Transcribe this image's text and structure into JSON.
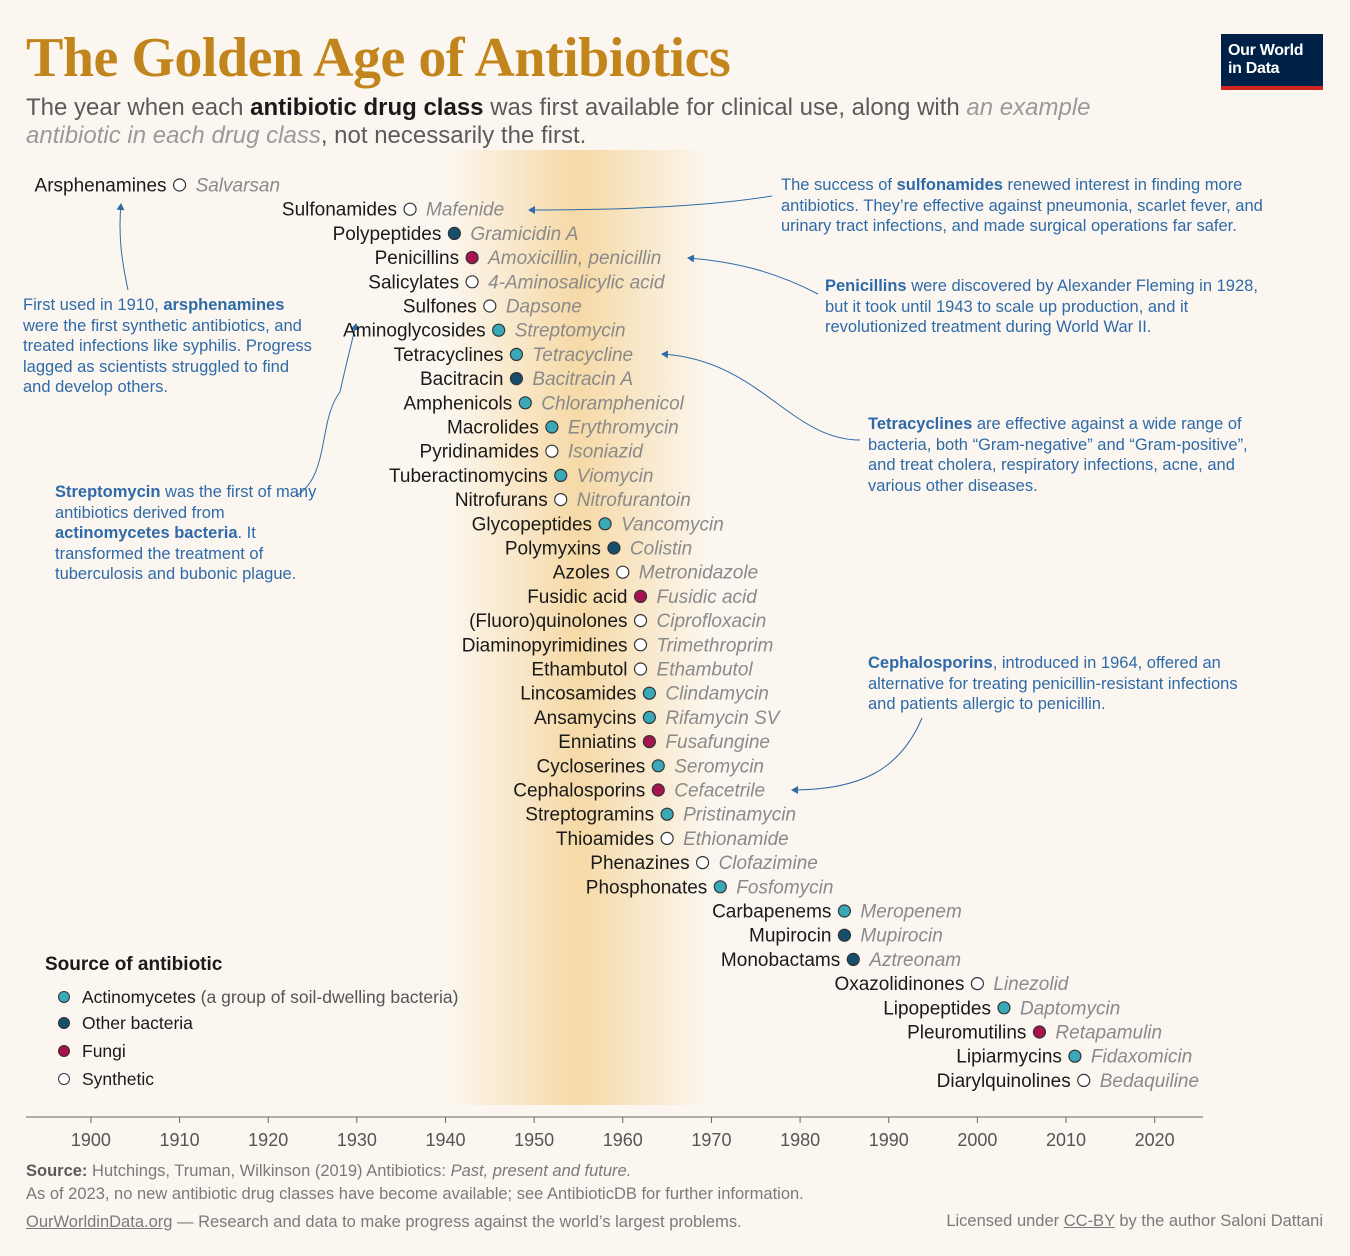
{
  "header": {
    "title": "The Golden Age of Antibiotics",
    "subtitle_part1": "The year when each ",
    "subtitle_bold": "antibiotic drug class",
    "subtitle_part2": " was first available for clinical use, along with ",
    "subtitle_italic": "an example antibiotic in each drug class",
    "subtitle_part3": ", not necessarily the first.",
    "logo_line1": "Our World",
    "logo_line2": "in Data"
  },
  "colors": {
    "actinomycetes": "#3aa9b7",
    "other_bacteria": "#174e6b",
    "fungi": "#a8124e",
    "synthetic": "#ffffff",
    "label": "#1a1a1a",
    "example": "#8a8a8a",
    "annotation": "#2f6aa8",
    "title": "#c2851d",
    "golden_band": "#f6d9a6"
  },
  "chart_data": {
    "type": "scatter",
    "title": "The Golden Age of Antibiotics",
    "xlabel": "",
    "ylabel": "",
    "xlim": [
      1892,
      2025
    ],
    "x_ticks": [
      1900,
      1910,
      1920,
      1930,
      1940,
      1950,
      1960,
      1970,
      1980,
      1990,
      2000,
      2010,
      2020
    ],
    "golden_age": [
      1940,
      1970
    ],
    "points": [
      {
        "class": "Arsphenamines",
        "year": 1910,
        "example": "Salvarsan",
        "source": "synthetic"
      },
      {
        "class": "Sulfonamides",
        "year": 1936,
        "example": "Mafenide",
        "source": "synthetic"
      },
      {
        "class": "Polypeptides",
        "year": 1941,
        "example": "Gramicidin A",
        "source": "other_bacteria"
      },
      {
        "class": "Penicillins",
        "year": 1943,
        "example": "Amoxicillin, penicillin",
        "source": "fungi"
      },
      {
        "class": "Salicylates",
        "year": 1943,
        "example": "4-Aminosalicylic acid",
        "source": "synthetic"
      },
      {
        "class": "Sulfones",
        "year": 1945,
        "example": "Dapsone",
        "source": "synthetic"
      },
      {
        "class": "Aminoglycosides",
        "year": 1946,
        "example": "Streptomycin",
        "source": "actinomycetes"
      },
      {
        "class": "Tetracyclines",
        "year": 1948,
        "example": "Tetracycline",
        "source": "actinomycetes"
      },
      {
        "class": "Bacitracin",
        "year": 1948,
        "example": "Bacitracin A",
        "source": "other_bacteria"
      },
      {
        "class": "Amphenicols",
        "year": 1949,
        "example": "Chloramphenicol",
        "source": "actinomycetes"
      },
      {
        "class": "Macrolides",
        "year": 1952,
        "example": "Erythromycin",
        "source": "actinomycetes"
      },
      {
        "class": "Pyridinamides",
        "year": 1952,
        "example": "Isoniazid",
        "source": "synthetic"
      },
      {
        "class": "Tuberactinomycins",
        "year": 1953,
        "example": "Viomycin",
        "source": "actinomycetes"
      },
      {
        "class": "Nitrofurans",
        "year": 1953,
        "example": "Nitrofurantoin",
        "source": "synthetic"
      },
      {
        "class": "Glycopeptides",
        "year": 1958,
        "example": "Vancomycin",
        "source": "actinomycetes"
      },
      {
        "class": "Polymyxins",
        "year": 1959,
        "example": "Colistin",
        "source": "other_bacteria"
      },
      {
        "class": "Azoles",
        "year": 1960,
        "example": "Metronidazole",
        "source": "synthetic"
      },
      {
        "class": "Fusidic acid",
        "year": 1962,
        "example": "Fusidic acid",
        "source": "fungi"
      },
      {
        "class": "(Fluoro)quinolones",
        "year": 1962,
        "example": "Ciprofloxacin",
        "source": "synthetic"
      },
      {
        "class": "Diaminopyrimidines",
        "year": 1962,
        "example": "Trimethroprim",
        "source": "synthetic"
      },
      {
        "class": "Ethambutol",
        "year": 1962,
        "example": "Ethambutol",
        "source": "synthetic"
      },
      {
        "class": "Lincosamides",
        "year": 1963,
        "example": "Clindamycin",
        "source": "actinomycetes"
      },
      {
        "class": "Ansamycins",
        "year": 1963,
        "example": "Rifamycin SV",
        "source": "actinomycetes"
      },
      {
        "class": "Enniatins",
        "year": 1963,
        "example": "Fusafungine",
        "source": "fungi"
      },
      {
        "class": "Cycloserines",
        "year": 1964,
        "example": "Seromycin",
        "source": "actinomycetes"
      },
      {
        "class": "Cephalosporins",
        "year": 1964,
        "example": "Cefacetrile",
        "source": "fungi"
      },
      {
        "class": "Streptogramins",
        "year": 1965,
        "example": "Pristinamycin",
        "source": "actinomycetes"
      },
      {
        "class": "Thioamides",
        "year": 1965,
        "example": "Ethionamide",
        "source": "synthetic"
      },
      {
        "class": "Phenazines",
        "year": 1969,
        "example": "Clofazimine",
        "source": "synthetic"
      },
      {
        "class": "Phosphonates",
        "year": 1971,
        "example": "Fosfomycin",
        "source": "actinomycetes"
      },
      {
        "class": "Carbapenems",
        "year": 1985,
        "example": "Meropenem",
        "source": "actinomycetes"
      },
      {
        "class": "Mupirocin",
        "year": 1985,
        "example": "Mupirocin",
        "source": "other_bacteria"
      },
      {
        "class": "Monobactams",
        "year": 1986,
        "example": "Aztreonam",
        "source": "other_bacteria"
      },
      {
        "class": "Oxazolidinones",
        "year": 2000,
        "example": "Linezolid",
        "source": "synthetic"
      },
      {
        "class": "Lipopeptides",
        "year": 2003,
        "example": "Daptomycin",
        "source": "actinomycetes"
      },
      {
        "class": "Pleuromutilins",
        "year": 2007,
        "example": "Retapamulin",
        "source": "fungi"
      },
      {
        "class": "Lipiarmycins",
        "year": 2011,
        "example": "Fidaxomicin",
        "source": "actinomycetes"
      },
      {
        "class": "Diarylquinolines",
        "year": 2012,
        "example": "Bedaquiline",
        "source": "synthetic"
      }
    ]
  },
  "annotations": {
    "arsphenamines": {
      "pre": "First used in 1910, ",
      "bold": "arsphenamines",
      "post": " were the first synthetic antibiotics, and treated infections like syphilis. Progress lagged as scientists struggled to find and develop others."
    },
    "streptomycin": {
      "bold1": "Streptomycin",
      "mid": " was the first of many antibiotics derived from ",
      "bold2": "actinomycetes bacteria",
      "post": ". It transformed the treatment of tuberculosis and bubonic plague."
    },
    "sulfonamides": {
      "pre": "The success of ",
      "bold": "sulfonamides",
      "post": " renewed interest in finding more antibiotics. They’re effective against pneumonia, scarlet fever, and urinary tract infections, and made surgical operations far safer."
    },
    "penicillins": {
      "bold": "Penicillins",
      "post": " were discovered by Alexander Fleming in 1928, but it took until 1943 to scale up production, and it revolutionized treatment during World War II."
    },
    "tetracyclines": {
      "bold": "Tetracyclines",
      "post": " are effective against a wide range of bacteria, both “Gram-negative” and “Gram-positive”, and treat cholera, respiratory infections, acne, and various other diseases."
    },
    "cephalosporins": {
      "bold": "Cephalosporins",
      "post": ", introduced in 1964, offered an alternative for treating penicillin-resistant infections and patients allergic to penicillin."
    }
  },
  "legend": {
    "title": "Source of antibiotic",
    "items": [
      {
        "key": "actinomycetes",
        "label": "Actinomycetes",
        "note": " (a group of soil-dwelling bacteria)"
      },
      {
        "key": "other_bacteria",
        "label": "Other bacteria",
        "note": ""
      },
      {
        "key": "fungi",
        "label": "Fungi",
        "note": ""
      },
      {
        "key": "synthetic",
        "label": "Synthetic",
        "note": ""
      }
    ]
  },
  "footer": {
    "source_label": "Source:",
    "source_text": " Hutchings, Truman, Wilkinson (2019) Antibiotics: ",
    "source_italic": "Past, present and future.",
    "note": "As of 2023, no new antibiotic drug classes have become available; see AntibioticDB for further information.",
    "site": "OurWorldinData.org",
    "tagline": " — Research and data to make progress against the world’s largest problems.",
    "license_pre": "Licensed under ",
    "license_link": "CC-BY",
    "license_post": " by the author Saloni Dattani"
  }
}
